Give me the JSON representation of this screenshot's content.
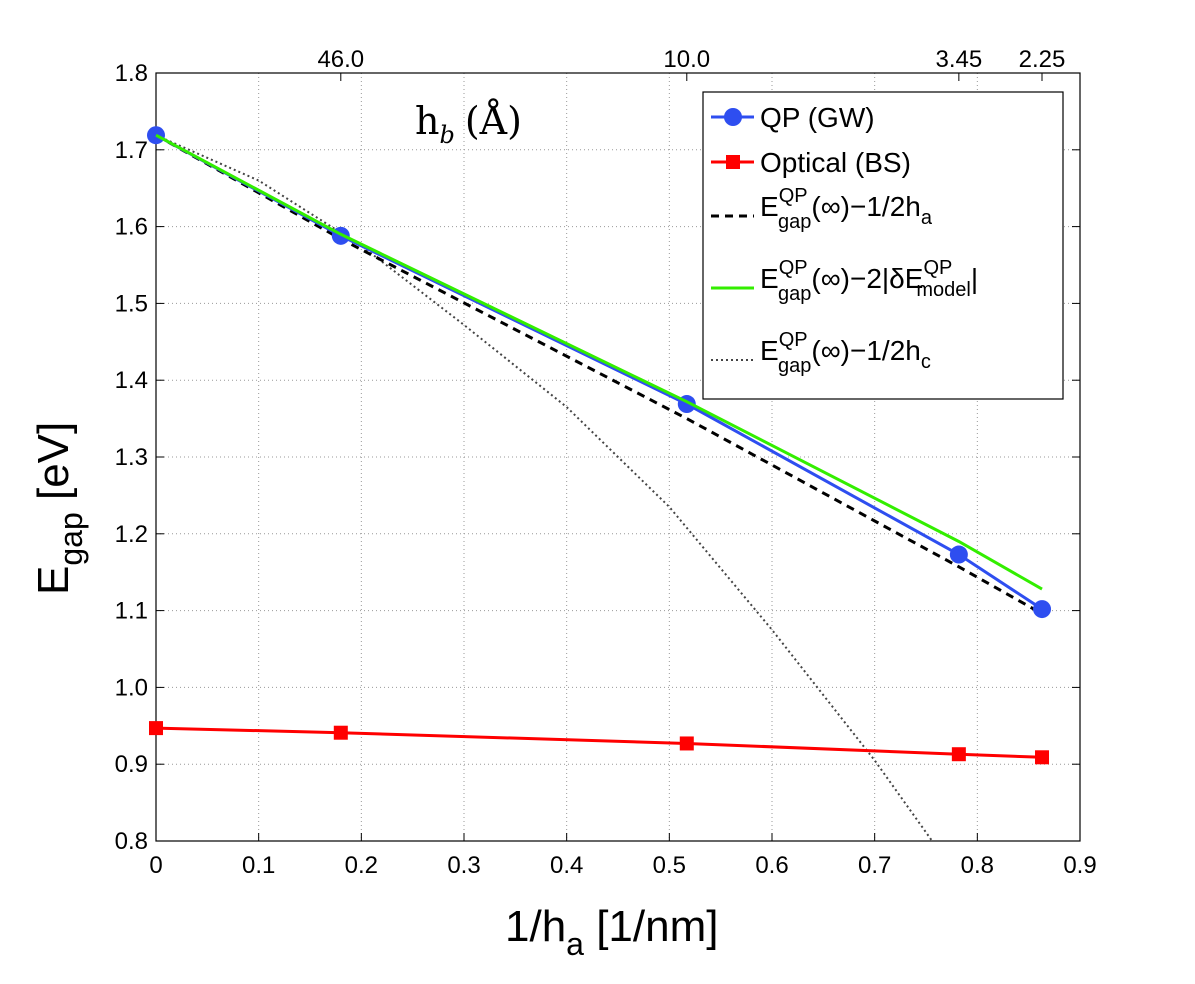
{
  "chart_data": {
    "type": "line",
    "xlabel_main": "1/h",
    "xlabel_sub": "a",
    "xlabel_tail": " [1/nm]",
    "ylabel_main": "E",
    "ylabel_sub": "gap",
    "ylabel_tail": " [eV]",
    "xlim": [
      0,
      0.9
    ],
    "ylim": [
      0.8,
      1.8
    ],
    "x_ticks": [
      "0",
      "0.1",
      "0.2",
      "0.3",
      "0.4",
      "0.5",
      "0.6",
      "0.7",
      "0.8",
      "0.9"
    ],
    "y_ticks": [
      "0.8",
      "0.9",
      "1.0",
      "1.1",
      "1.2",
      "1.3",
      "1.4",
      "1.5",
      "1.6",
      "1.7",
      "1.8"
    ],
    "grid": true,
    "top_axis": {
      "title_h": "h",
      "title_sub": "b",
      "title_unit": "(Å)",
      "ticks": [
        {
          "x": 0.18,
          "label": "46.0"
        },
        {
          "x": 0.517,
          "label": "10.0"
        },
        {
          "x": 0.782,
          "label": "3.45"
        },
        {
          "x": 0.863,
          "label": "2.25"
        }
      ]
    },
    "legend_position": "top-right",
    "series": [
      {
        "name": "QP (GW)",
        "style": "solid-circle",
        "color": "#2e4ef0",
        "x": [
          0,
          0.18,
          0.517,
          0.782,
          0.863
        ],
        "y": [
          1.719,
          1.588,
          1.369,
          1.173,
          1.102
        ]
      },
      {
        "name": "Optical (BS)",
        "style": "solid-square",
        "color": "#ff0000",
        "x": [
          0,
          0.18,
          0.517,
          0.782,
          0.863
        ],
        "y": [
          0.947,
          0.941,
          0.927,
          0.913,
          0.909
        ]
      },
      {
        "name": "E_gap^QP(∞)−1/2h_a",
        "legend_main": "E",
        "legend_sub": "gap",
        "legend_sup": "QP",
        "legend_tail": "(∞)−1/2h",
        "legend_tail_sub": "a",
        "style": "dashed",
        "color": "#000000",
        "x": [
          0,
          0.18,
          0.517,
          0.782,
          0.863
        ],
        "y": [
          1.719,
          1.584,
          1.35,
          1.157,
          1.096
        ]
      },
      {
        "name": "E_gap^QP(∞)−2|δE_model^QP|",
        "legend_main": "E",
        "legend_sub": "gap",
        "legend_sup": "QP",
        "legend_tail": "(∞)−2|δE",
        "legend_tail_sub": "model",
        "legend_tail_sup": "QP",
        "legend_end": "|",
        "style": "solid",
        "color": "#33ee00",
        "x": [
          0,
          0.18,
          0.517,
          0.782,
          0.863
        ],
        "y": [
          1.719,
          1.59,
          1.372,
          1.19,
          1.128
        ]
      },
      {
        "name": "E_gap^QP(∞)−1/2h_c",
        "legend_main": "E",
        "legend_sub": "gap",
        "legend_sup": "QP",
        "legend_tail": "(∞)−1/2h",
        "legend_tail_sub": "c",
        "style": "dotted",
        "color": "#444444",
        "x": [
          0,
          0.1,
          0.2,
          0.3,
          0.4,
          0.5,
          0.6,
          0.7,
          0.756
        ],
        "y": [
          1.719,
          1.66,
          1.575,
          1.472,
          1.365,
          1.235,
          1.075,
          0.905,
          0.8
        ]
      }
    ]
  }
}
